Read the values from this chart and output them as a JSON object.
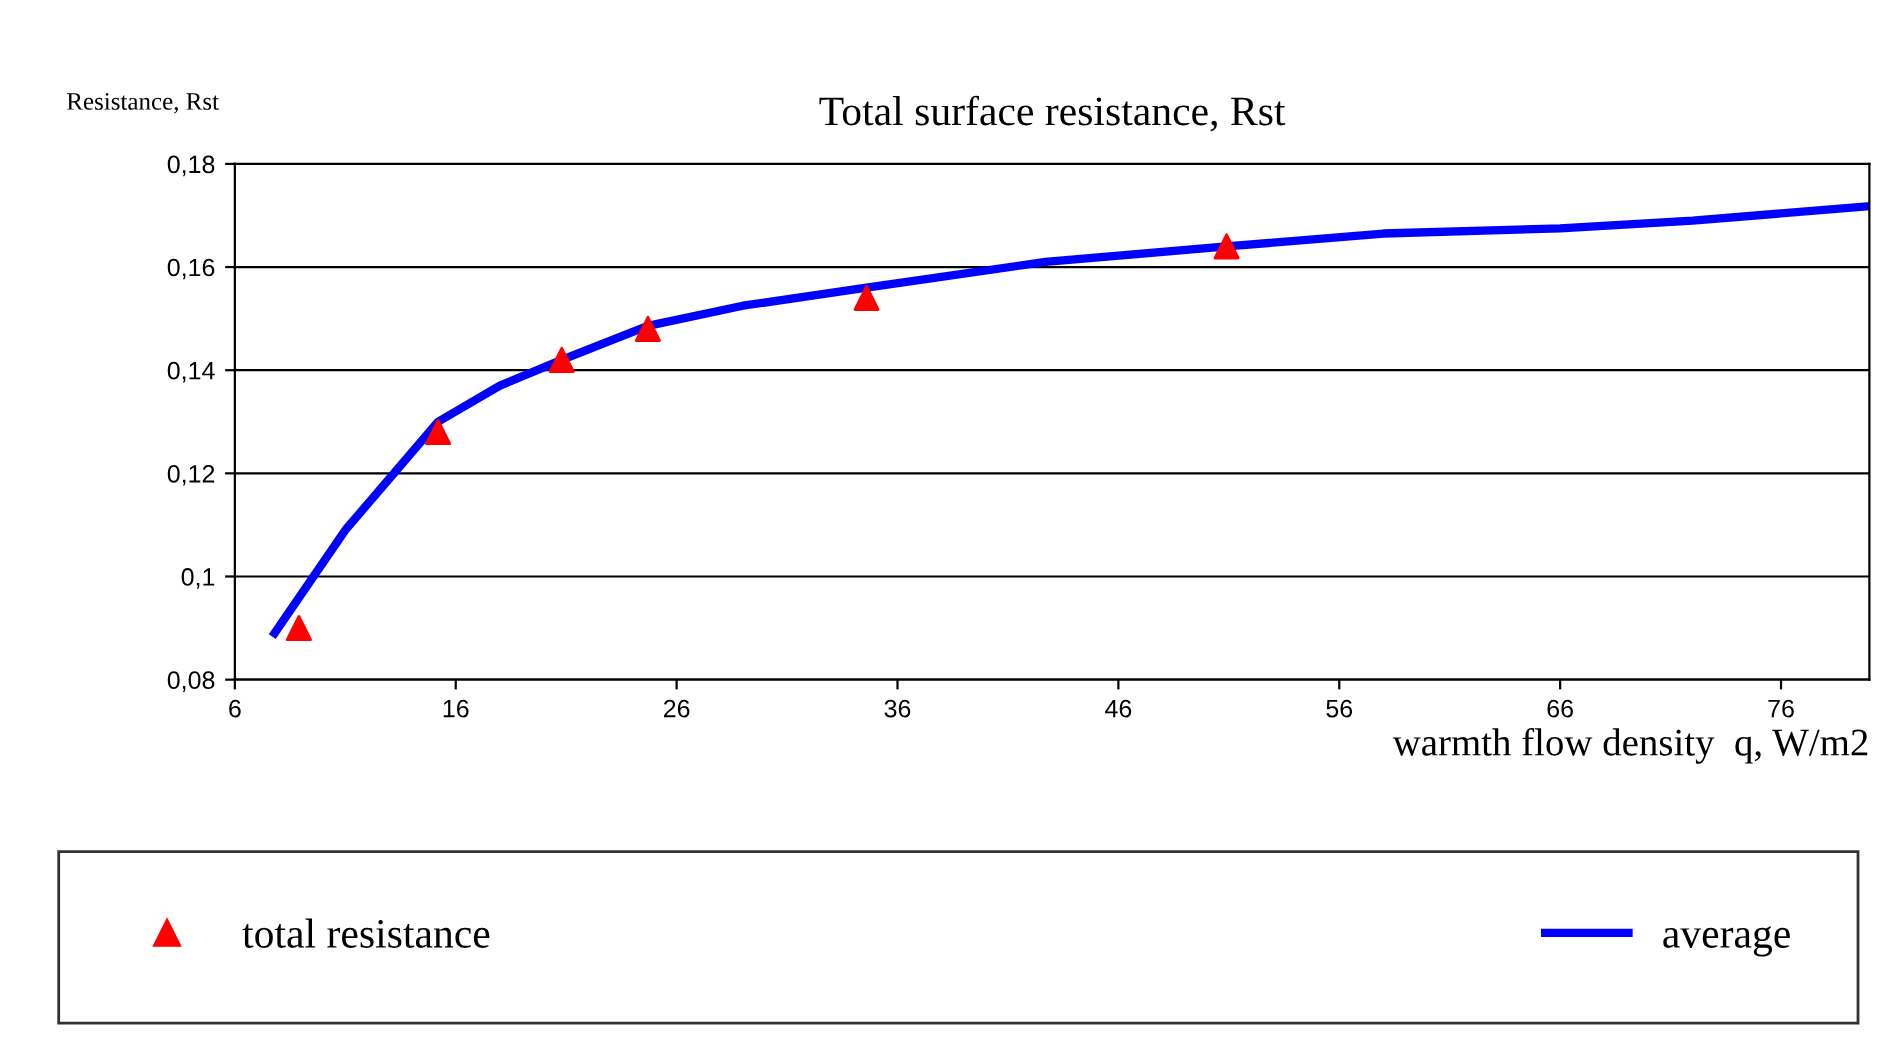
{
  "chart_data": {
    "type": "scatter",
    "title": "Total surface resistance, Rst",
    "ylabel": "Resistance, Rst",
    "xlabel": "warmth flow density  q, W/m2",
    "series": [
      {
        "name": "total resistance",
        "color": "#ff0000",
        "marker": "triangle",
        "x": [
          8.9,
          15.2,
          20.8,
          24.7,
          34.6,
          50.9
        ],
        "values": [
          0.09,
          0.128,
          0.142,
          0.148,
          0.154,
          0.164
        ]
      },
      {
        "name": "average",
        "type": "line",
        "color": "#0000ff",
        "marker": "none",
        "line_style": "solid",
        "x": [
          7.8,
          11,
          15.2,
          18,
          20.8,
          24.7,
          29,
          34.6,
          42.7,
          50.9,
          58,
          66,
          72,
          80
        ],
        "values": [
          0.089,
          0.109,
          0.13,
          0.137,
          0.142,
          0.1486,
          0.1525,
          0.156,
          0.161,
          0.164,
          0.1665,
          0.1675,
          0.169,
          0.1718
        ]
      }
    ],
    "xlim": [
      6,
      80
    ],
    "xticks": [
      6,
      16,
      26,
      36,
      46,
      56,
      66,
      76
    ],
    "ylim": [
      0.08,
      0.18
    ],
    "yticks": [
      {
        "value": 0.08,
        "label": "0,08"
      },
      {
        "value": 0.1,
        "label": "0,1"
      },
      {
        "value": 0.12,
        "label": "0,12"
      },
      {
        "value": 0.14,
        "label": "0,14"
      },
      {
        "value": 0.16,
        "label": "0,16"
      },
      {
        "value": 0.18,
        "label": "0,18"
      }
    ],
    "grid": "y",
    "legend": "bottom"
  }
}
